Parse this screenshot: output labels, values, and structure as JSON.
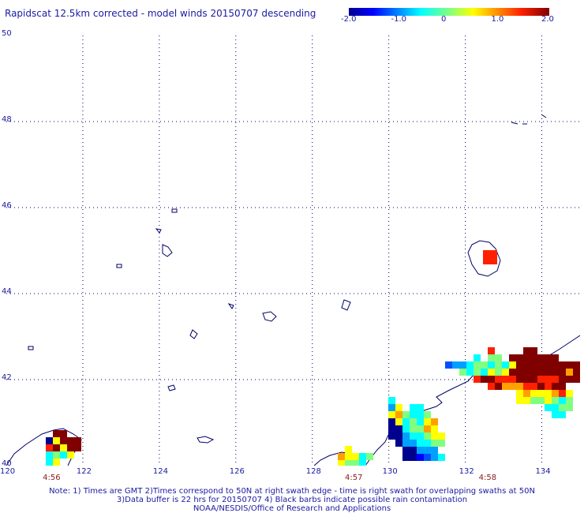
{
  "title": "Rapidscat 12.5km corrected - model winds 20150707 descending",
  "colorbar": {
    "ticks": [
      "-2.0",
      "-1.0",
      "0",
      "1.0",
      "2.0"
    ],
    "tick_values": [
      -2.0,
      -1.0,
      0,
      1.0,
      2.0
    ]
  },
  "lat_labels": [
    "50",
    "48",
    "46",
    "44",
    "42",
    "40"
  ],
  "lon_labels": [
    "120",
    "122",
    "124",
    "126",
    "128",
    "130",
    "132",
    "134"
  ],
  "time_labels": [
    "4:56",
    "4:57",
    "4:58"
  ],
  "notes": [
    "Note: 1) Times are GMT 2)Times correspond to 50N at right swath edge - time is right swath for overlapping swaths at 50N",
    "3)Data buffer is 22 hrs for 20150707 4) Black barbs indicate possible rain contamination",
    "NOAA/NESDIS/Office of Research and Applications"
  ],
  "colors": {
    "text": "#1a1aa0",
    "coast": "#000066",
    "grid": "#000066",
    "time_label": "#8b1a1a"
  }
}
